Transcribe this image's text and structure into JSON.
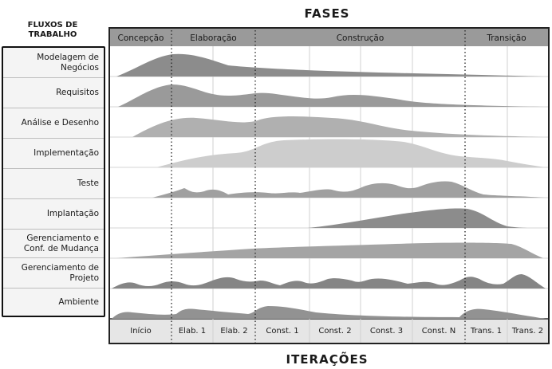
{
  "phases_title": "FASES",
  "iterations_title": "ITERAÇÕES",
  "workflow_header": "FLUXOS DE TRABALHO",
  "phases": [
    "Concepção",
    "Elaboração",
    "Construção",
    "Transição"
  ],
  "workflows": [
    "Modelagem de Negócios",
    "Requisitos",
    "Análise e Desenho",
    "Implementação",
    "Teste",
    "Implantação",
    "Gerenciamento e Conf. de Mudança",
    "Gerenciamento de Projeto",
    "Ambiente"
  ],
  "iterations": [
    "Início",
    "Elab. 1",
    "Elab. 2",
    "Const. 1",
    "Const. 2",
    "Const. 3",
    "Const. N",
    "Trans. 1",
    "Trans. 2"
  ],
  "colors": {
    "header_bar": "#9a9a9a",
    "frame": "#222222",
    "curve_dark": "#8c8c8c",
    "curve_mid": "#a8a8a8",
    "curve_light": "#c9c9c9"
  }
}
